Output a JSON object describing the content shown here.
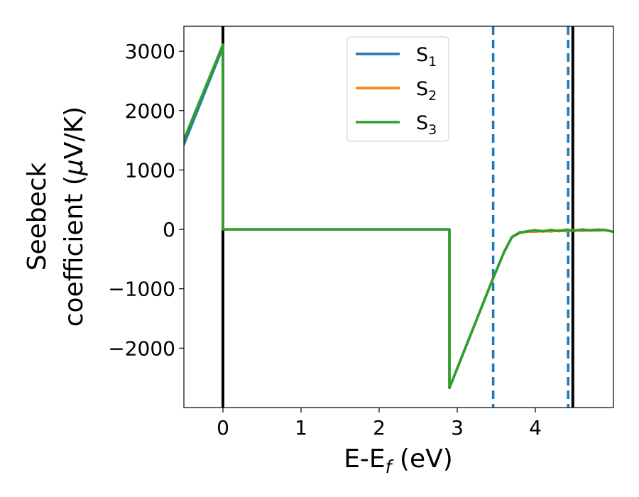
{
  "chart_data": {
    "type": "line",
    "xlabel": {
      "main": "E-E",
      "sub": "f",
      "tail": " (eV)"
    },
    "ylabel": {
      "line1": "Seebeck",
      "line2_prefix": "coefficient  (",
      "mu": "μ",
      "line2_suffix": "V/K)"
    },
    "xlim": [
      -0.5,
      5.0
    ],
    "ylim": [
      -3000,
      3420
    ],
    "xticks": [
      0,
      1,
      2,
      3,
      4
    ],
    "xtick_labels": [
      "0",
      "1",
      "2",
      "3",
      "4"
    ],
    "yticks": [
      -2000,
      -1000,
      0,
      1000,
      2000,
      3000
    ],
    "ytick_labels": [
      "−2000",
      "−1000",
      "0",
      "1000",
      "2000",
      "3000"
    ],
    "legend_position": "top-center",
    "grid": false,
    "vlines": [
      {
        "x": 0.0,
        "style": "solid",
        "color": "#000000"
      },
      {
        "x": 4.48,
        "style": "solid",
        "color": "#000000"
      },
      {
        "x": 3.46,
        "style": "dashed",
        "color": "#1f77b4"
      },
      {
        "x": 4.42,
        "style": "dashed",
        "color": "#1f77b4"
      }
    ],
    "series": [
      {
        "name": "S",
        "sub": "1",
        "color": "#1f77b4",
        "x": [
          -0.5,
          0.0,
          0.0,
          2.9,
          2.9,
          3.46,
          3.6,
          3.7,
          3.8,
          3.9,
          4.0,
          4.1,
          4.2,
          4.3,
          4.4,
          4.5,
          4.6,
          4.7,
          4.8,
          4.9,
          5.0
        ],
        "y": [
          1430,
          3070,
          0,
          0,
          -2670,
          -820,
          -380,
          -130,
          -50,
          -40,
          -20,
          -30,
          -15,
          -25,
          -10,
          -20,
          -5,
          -15,
          -5,
          -10,
          -40
        ]
      },
      {
        "name": "S",
        "sub": "2",
        "color": "#ff7f0e",
        "x": [
          -0.5,
          0.0,
          0.0,
          2.9,
          2.9,
          3.46,
          3.6,
          3.7,
          3.8,
          3.9,
          4.0,
          4.1,
          4.2,
          4.3,
          4.4,
          4.5,
          4.6,
          4.7,
          4.8,
          4.9,
          5.0
        ],
        "y": [
          1510,
          3110,
          0,
          0,
          -2670,
          -820,
          -380,
          -130,
          -60,
          -35,
          -40,
          -25,
          -35,
          -15,
          -30,
          -10,
          -25,
          -15,
          -20,
          -10,
          -40
        ]
      },
      {
        "name": "S",
        "sub": "3",
        "color": "#2ca02c",
        "x": [
          -0.5,
          0.0,
          0.0,
          2.9,
          2.9,
          3.46,
          3.6,
          3.7,
          3.8,
          3.9,
          4.0,
          4.1,
          4.2,
          4.3,
          4.4,
          4.5,
          4.6,
          4.7,
          4.8,
          4.9,
          5.0
        ],
        "y": [
          1510,
          3110,
          0,
          0,
          -2670,
          -820,
          -380,
          -130,
          -55,
          -30,
          -15,
          -35,
          -10,
          -30,
          -5,
          -25,
          0,
          -20,
          -5,
          -15,
          -40
        ]
      }
    ]
  }
}
